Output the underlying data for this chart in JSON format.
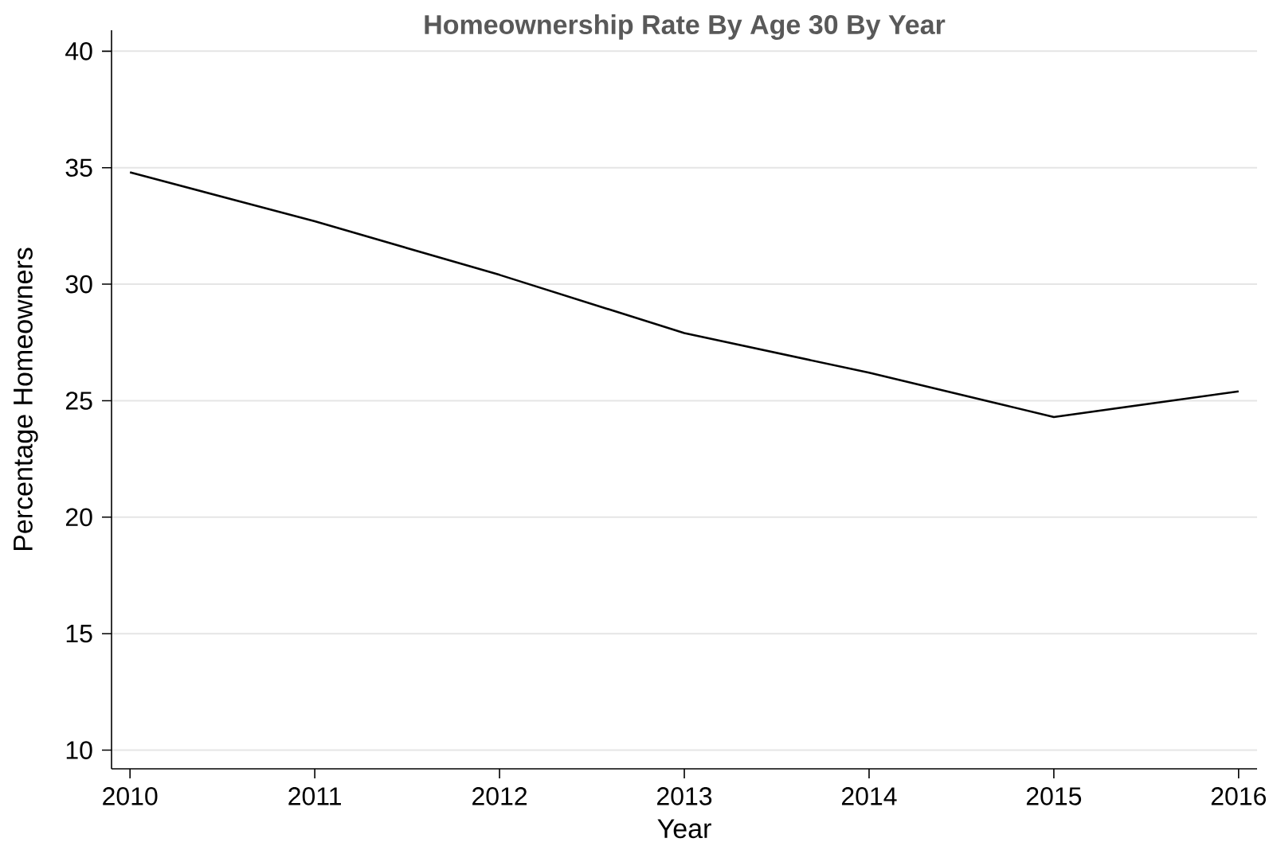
{
  "chart_data": {
    "type": "line",
    "title": "Homeownership Rate By Age 30 By Year",
    "xlabel": "Year",
    "ylabel": "Percentage Homeowners",
    "x": [
      2010,
      2011,
      2012,
      2013,
      2014,
      2015,
      2016
    ],
    "values": [
      34.8,
      32.7,
      30.4,
      27.9,
      26.2,
      24.3,
      25.4
    ],
    "color": "#000000",
    "xlim": [
      2009.9,
      2016.1
    ],
    "ylim": [
      9.2,
      40.9
    ],
    "xticks": [
      2010,
      2011,
      2012,
      2013,
      2014,
      2015,
      2016
    ],
    "yticks": [
      10,
      15,
      20,
      25,
      30,
      35,
      40
    ],
    "grid": "y"
  }
}
